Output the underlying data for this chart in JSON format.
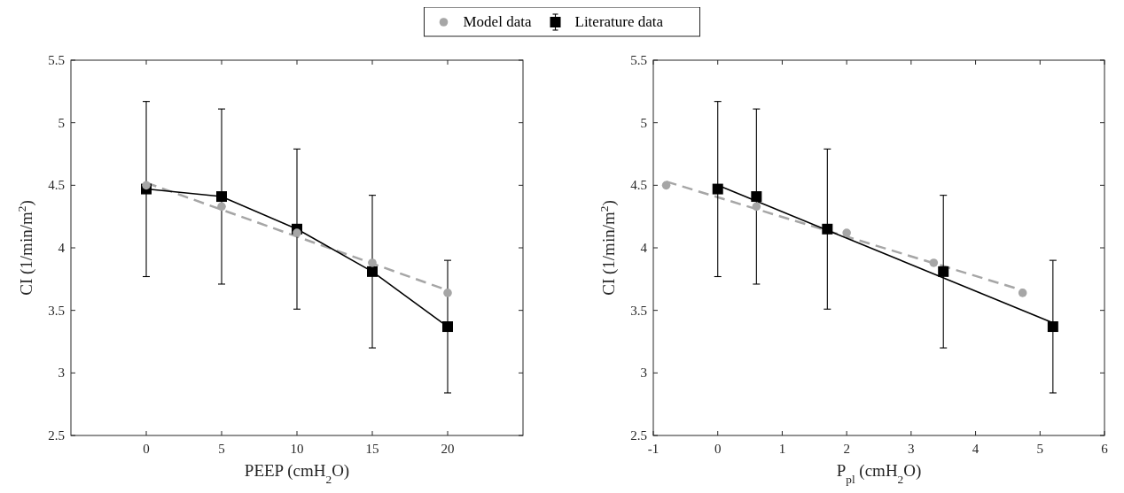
{
  "chart_data": [
    {
      "type": "scatter",
      "xlabel": "PEEP (cmH$_{2}$O)",
      "ylabel": "CI (1/min/m$^{2}$)",
      "xlim": [
        -5,
        25
      ],
      "xticks": [
        0,
        5,
        10,
        15,
        20
      ],
      "ylim": [
        2.5,
        5.5
      ],
      "yticks": [
        2.5,
        3,
        3.5,
        4,
        4.5,
        5,
        5.5
      ],
      "grid": false,
      "legend": "top",
      "series": [
        {
          "type": "line",
          "color": "#a6a6a6",
          "line_style": "dashed",
          "marker": "none",
          "x": [
            0,
            20
          ],
          "values": [
            4.52,
            3.66
          ]
        },
        {
          "type": "line",
          "name": "Literature data",
          "color": "#000000",
          "line_style": "solid",
          "marker": "square",
          "x": [
            0,
            5,
            10,
            15,
            20
          ],
          "values": [
            4.47,
            4.41,
            4.15,
            3.81,
            3.37
          ],
          "errors": [
            [
              3.77,
              5.17
            ],
            [
              3.71,
              5.11
            ],
            [
              3.51,
              4.79
            ],
            [
              3.2,
              4.42
            ],
            [
              2.84,
              3.9
            ]
          ]
        },
        {
          "name": "Model data",
          "color": "#a6a6a6",
          "marker": "circle",
          "x": [
            0,
            5,
            10,
            15,
            20
          ],
          "values": [
            4.5,
            4.33,
            4.12,
            3.88,
            3.64
          ]
        }
      ]
    },
    {
      "type": "scatter",
      "xlabel": "P$_{pl}$ (cmH$_{2}$O)",
      "ylabel": "CI (1/min/m$^{2}$)",
      "xlim": [
        -1,
        6
      ],
      "xticks": [
        -1,
        0,
        1,
        2,
        3,
        4,
        5,
        6
      ],
      "ylim": [
        2.5,
        5.5
      ],
      "yticks": [
        2.5,
        3,
        3.5,
        4,
        4.5,
        5,
        5.5
      ],
      "grid": false,
      "series": [
        {
          "type": "line",
          "color": "#a6a6a6",
          "line_style": "dashed",
          "marker": "none",
          "x": [
            -0.8,
            4.73
          ],
          "values": [
            4.53,
            3.66
          ]
        },
        {
          "type": "line",
          "color": "#000000",
          "line_style": "solid",
          "marker": "none",
          "x": [
            0,
            5.2
          ],
          "values": [
            4.5,
            3.4
          ]
        },
        {
          "color": "#000000",
          "marker": "square",
          "x": [
            0,
            0.6,
            1.7,
            3.5,
            5.2
          ],
          "values": [
            4.47,
            4.41,
            4.15,
            3.81,
            3.37
          ],
          "errors": [
            [
              3.77,
              5.17
            ],
            [
              3.71,
              5.11
            ],
            [
              3.51,
              4.79
            ],
            [
              3.2,
              4.42
            ],
            [
              2.84,
              3.9
            ]
          ]
        },
        {
          "color": "#a6a6a6",
          "marker": "circle",
          "x": [
            -0.8,
            0.6,
            2.0,
            3.35,
            4.73
          ],
          "values": [
            4.5,
            4.33,
            4.12,
            3.88,
            3.64
          ]
        }
      ]
    }
  ]
}
